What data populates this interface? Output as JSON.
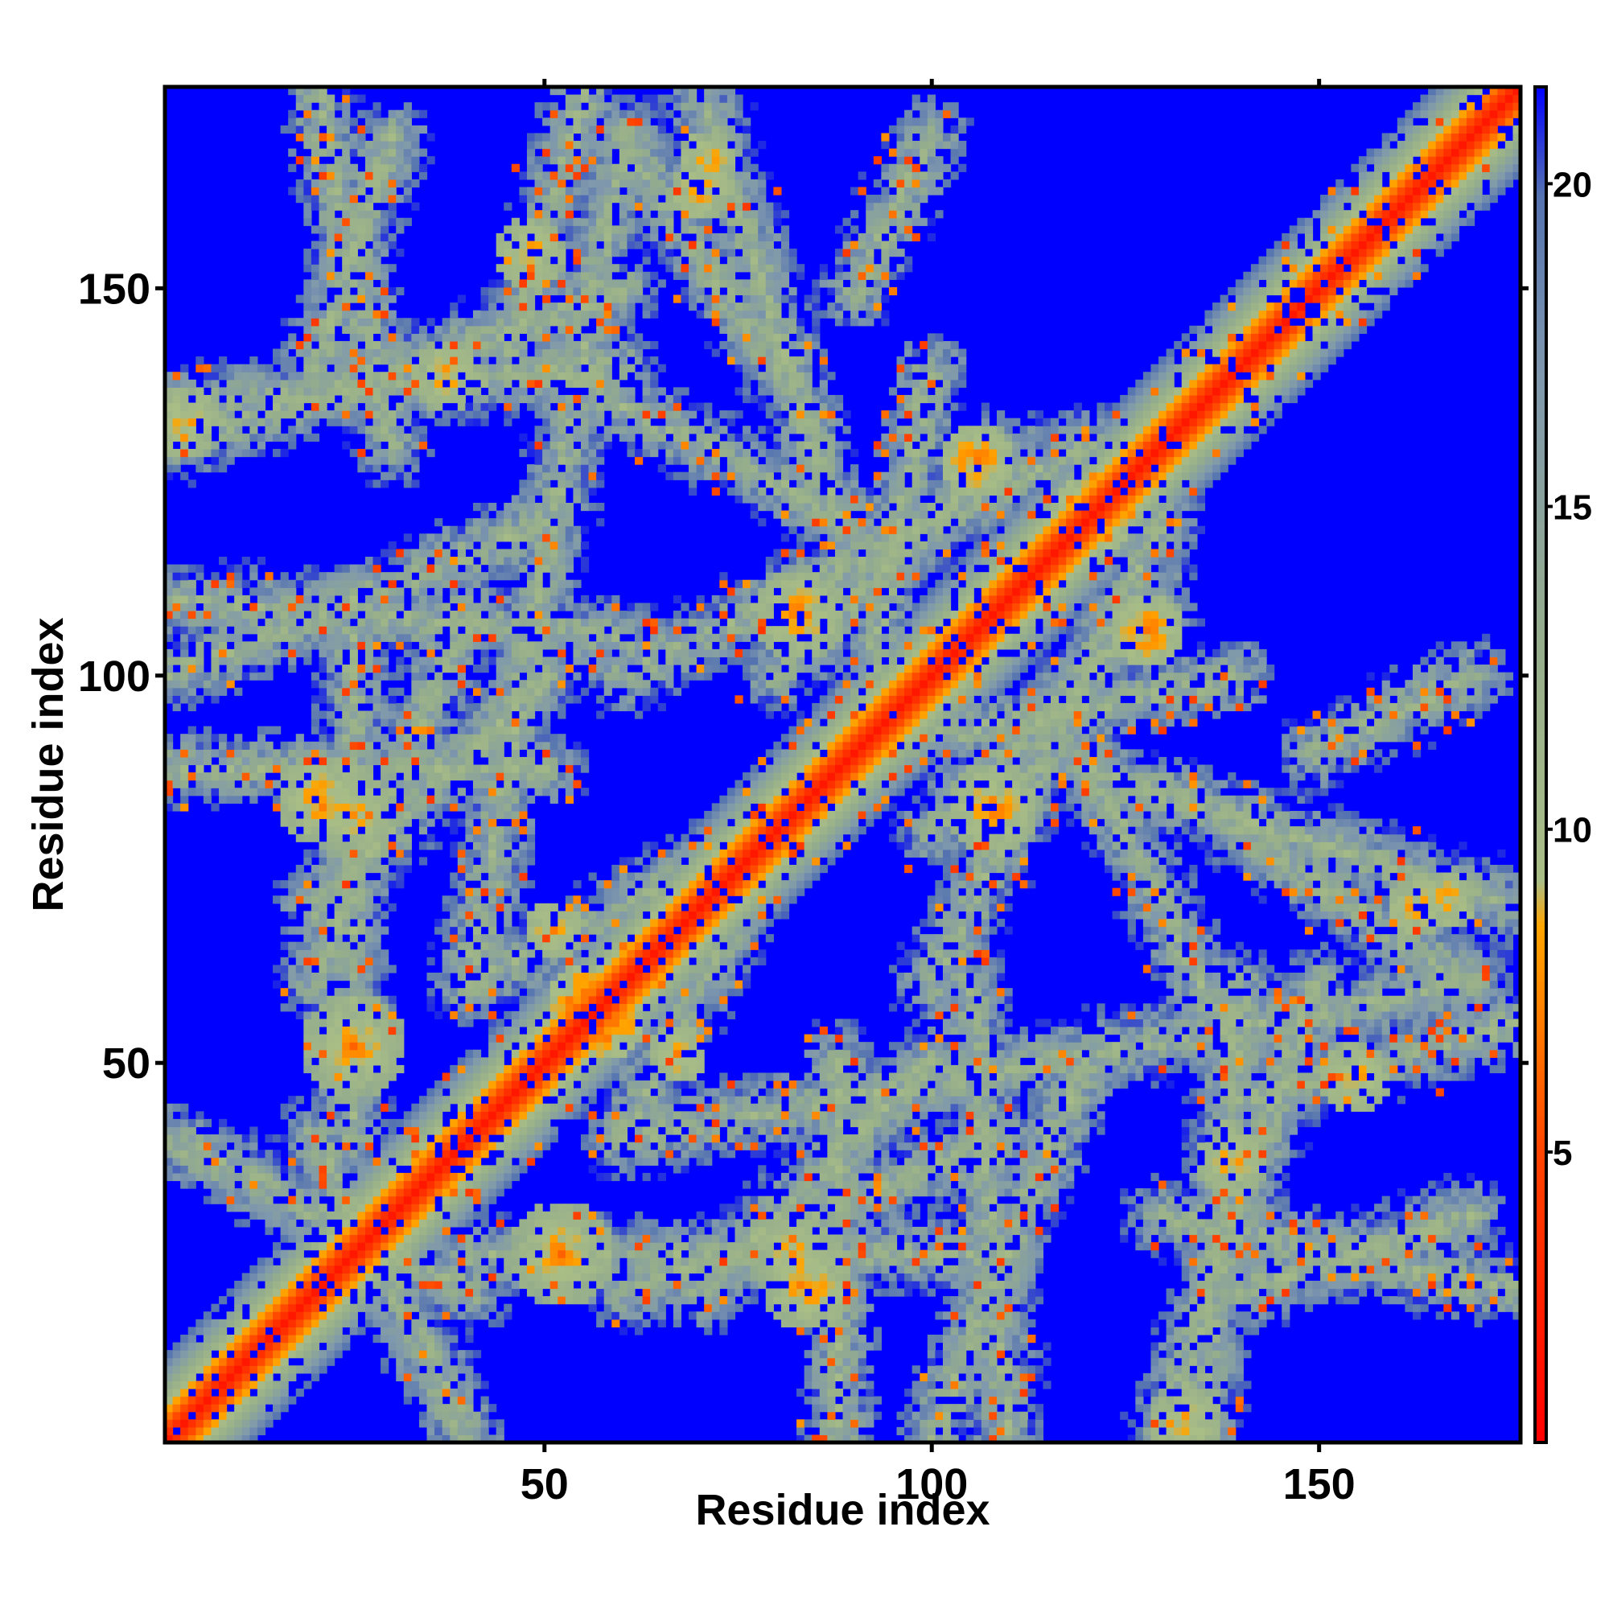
{
  "chart_data": {
    "type": "heatmap",
    "title": "",
    "xlabel": "Residue index",
    "ylabel": "Residue index",
    "n_residues": 176,
    "xlim": [
      1,
      176
    ],
    "ylim": [
      1,
      176
    ],
    "x_ticks": [
      {
        "value": 50,
        "label": "50"
      },
      {
        "value": 100,
        "label": "100"
      },
      {
        "value": 150,
        "label": "150"
      }
    ],
    "y_ticks": [
      {
        "value": 50,
        "label": "50"
      },
      {
        "value": 100,
        "label": "100"
      },
      {
        "value": 150,
        "label": "150"
      }
    ],
    "colorbar": {
      "range": [
        0.5,
        21.5
      ],
      "ticks": [
        {
          "value": 5,
          "label": "5"
        },
        {
          "value": 10,
          "label": "10"
        },
        {
          "value": 15,
          "label": "15"
        },
        {
          "value": 20,
          "label": "20"
        }
      ],
      "stops": [
        {
          "value": 0.5,
          "color": "#ff0000"
        },
        {
          "value": 5,
          "color": "#ff4400"
        },
        {
          "value": 8.5,
          "color": "#ffa500"
        },
        {
          "value": 9.2,
          "color": "#a9bd86"
        },
        {
          "value": 13,
          "color": "#95ad8c"
        },
        {
          "value": 17,
          "color": "#7f98ad"
        },
        {
          "value": 19.8,
          "color": "#5573b0"
        },
        {
          "value": 21.5,
          "color": "#0000ff"
        }
      ],
      "legend": "right"
    },
    "background_color": "#0000ff",
    "band_width_description": "symmetric distance map",
    "features": [
      {
        "type": "helix_diag",
        "x1": 1,
        "x2": 176
      },
      {
        "type": "blob",
        "cx": 84,
        "cy": 21,
        "r": 6,
        "v": 6
      },
      {
        "type": "blob",
        "cx": 52,
        "cy": 25,
        "r": 7,
        "v": 6
      },
      {
        "type": "blob",
        "cx": 25,
        "cy": 52,
        "r": 7,
        "v": 6
      },
      {
        "type": "blob",
        "cx": 21,
        "cy": 84,
        "r": 6,
        "v": 6
      },
      {
        "type": "blob",
        "cx": 25,
        "cy": 82,
        "r": 6,
        "v": 7
      },
      {
        "type": "blob",
        "cx": 82,
        "cy": 25,
        "r": 6,
        "v": 7
      },
      {
        "type": "blob",
        "cx": 83,
        "cy": 108,
        "r": 6,
        "v": 6
      },
      {
        "type": "blob",
        "cx": 108,
        "cy": 83,
        "r": 6,
        "v": 6
      },
      {
        "type": "blob",
        "cx": 106,
        "cy": 128,
        "r": 5,
        "v": 6
      },
      {
        "type": "blob",
        "cx": 128,
        "cy": 106,
        "r": 5,
        "v": 6
      },
      {
        "type": "blob",
        "cx": 58,
        "cy": 55,
        "r": 5,
        "v": 5
      },
      {
        "type": "blob",
        "cx": 67,
        "cy": 51,
        "r": 4,
        "v": 7
      },
      {
        "type": "blob",
        "cx": 51,
        "cy": 67,
        "r": 4,
        "v": 7
      },
      {
        "type": "blob",
        "cx": 3,
        "cy": 133,
        "r": 5,
        "v": 7
      },
      {
        "type": "blob",
        "cx": 133,
        "cy": 3,
        "r": 5,
        "v": 7
      },
      {
        "type": "blob",
        "cx": 155,
        "cy": 48,
        "r": 5,
        "v": 7
      },
      {
        "type": "blob",
        "cx": 48,
        "cy": 155,
        "r": 5,
        "v": 7
      },
      {
        "type": "blob",
        "cx": 163,
        "cy": 70,
        "r": 4,
        "v": 7
      },
      {
        "type": "blob",
        "cx": 70,
        "cy": 163,
        "r": 4,
        "v": 7
      },
      {
        "type": "blob",
        "cx": 71,
        "cy": 167,
        "r": 4,
        "v": 7
      },
      {
        "type": "blob",
        "cx": 139,
        "cy": 37,
        "r": 5,
        "v": 7
      },
      {
        "type": "blob",
        "cx": 37,
        "cy": 139,
        "r": 5,
        "v": 7
      },
      {
        "type": "blob",
        "cx": 120,
        "cy": 122,
        "r": 4,
        "v": 6
      },
      {
        "type": "blob",
        "cx": 74,
        "cy": 74,
        "r": 5,
        "v": 6
      }
    ],
    "bands": [
      {
        "x1": 1,
        "y1": 135,
        "x2": 60,
        "y2": 140,
        "w": 6
      },
      {
        "x1": 1,
        "y1": 110,
        "x2": 60,
        "y2": 105,
        "w": 6
      },
      {
        "x1": 1,
        "y1": 88,
        "x2": 50,
        "y2": 88,
        "w": 6
      },
      {
        "x1": 1,
        "y1": 40,
        "x2": 40,
        "y2": 20,
        "w": 6
      },
      {
        "x1": 40,
        "y1": 25,
        "x2": 110,
        "y2": 25,
        "w": 6
      },
      {
        "x1": 70,
        "y1": 20,
        "x2": 100,
        "y2": 50,
        "w": 6
      },
      {
        "x1": 100,
        "y1": 1,
        "x2": 120,
        "y2": 50,
        "w": 6
      },
      {
        "x1": 130,
        "y1": 1,
        "x2": 150,
        "y2": 60,
        "w": 7
      },
      {
        "x1": 130,
        "y1": 30,
        "x2": 176,
        "y2": 20,
        "w": 6
      },
      {
        "x1": 140,
        "y1": 45,
        "x2": 176,
        "y2": 55,
        "w": 6
      },
      {
        "x1": 120,
        "y1": 88,
        "x2": 176,
        "y2": 70,
        "w": 7
      },
      {
        "x1": 100,
        "y1": 80,
        "x2": 130,
        "y2": 110,
        "w": 6
      },
      {
        "x1": 60,
        "y1": 100,
        "x2": 120,
        "y2": 130,
        "w": 6
      },
      {
        "x1": 50,
        "y1": 140,
        "x2": 90,
        "y2": 120,
        "w": 6
      },
      {
        "x1": 40,
        "y1": 60,
        "x2": 60,
        "y2": 170,
        "w": 6
      },
      {
        "x1": 60,
        "y1": 170,
        "x2": 80,
        "y2": 140,
        "w": 7
      },
      {
        "x1": 20,
        "y1": 60,
        "x2": 40,
        "y2": 110,
        "w": 6
      },
      {
        "x1": 20,
        "y1": 140,
        "x2": 30,
        "y2": 170,
        "w": 6
      },
      {
        "x1": 90,
        "y1": 90,
        "x2": 100,
        "y2": 140,
        "w": 5
      },
      {
        "x1": 90,
        "y1": 150,
        "x2": 100,
        "y2": 170,
        "w": 6
      },
      {
        "x1": 60,
        "y1": 40,
        "x2": 80,
        "y2": 80,
        "w": 6
      }
    ]
  }
}
